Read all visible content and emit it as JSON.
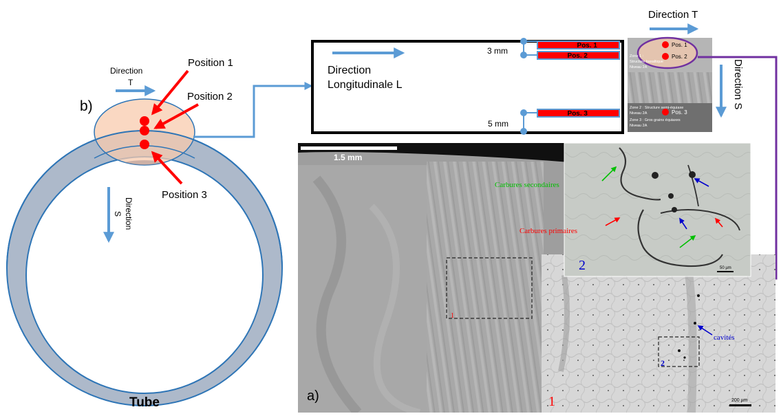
{
  "tube_panel": {
    "label": "b)",
    "direction_t": [
      "Direction",
      "T"
    ],
    "direction_s": [
      "Direction",
      "S"
    ],
    "position_1": "Position 1",
    "position_2": "Position 2",
    "position_3": "Position 3",
    "title": "Tube"
  },
  "section_diagram": {
    "direction_long": [
      "Direction",
      "Longitudinale L"
    ],
    "dim_top": "3 mm",
    "dim_bottom": "5 mm",
    "pos1": "Pos. 1",
    "pos2": "Pos. 2",
    "pos3": "Pos. 3"
  },
  "macro_thumbnail": {
    "direction_t": "Direction T",
    "direction_s": "Direction S",
    "pos1": "Pos. 1",
    "pos2": "Pos. 2",
    "pos3": "Pos. 3",
    "zone1": [
      "Zone 1 : ",
      "Structure basaltique",
      "Niveau 2A"
    ],
    "zone2": [
      "Zone 2 : Structure semi-équiaxe",
      "Niveau 2A"
    ],
    "zone3": [
      "Zone 3 : Gros grains équiaxes",
      "Niveau 2A"
    ]
  },
  "micrograph_main": {
    "scale_label": "1.5 mm",
    "panel_label": "a)",
    "region_marker": "1"
  },
  "micrograph_zoom1": {
    "panel_label": "1",
    "region_marker": "2",
    "annotation": "cavités",
    "scale_label": "200 µm"
  },
  "micrograph_zoom2": {
    "panel_label": "2",
    "annotation_secondary": "Carbures secondaires",
    "annotation_primary": "Carbures primaires",
    "scale_label": "50 µm"
  },
  "colors": {
    "arrow_blue": "#5b9bd5",
    "marker_red": "#ff0000",
    "connector_purple": "#7030a0",
    "ring_fill": "#adb9ca",
    "ring_stroke": "#2e75b6",
    "highlight": "#f8cbad",
    "annotation_green": "#00c000",
    "annotation_blue": "#0000cc"
  }
}
